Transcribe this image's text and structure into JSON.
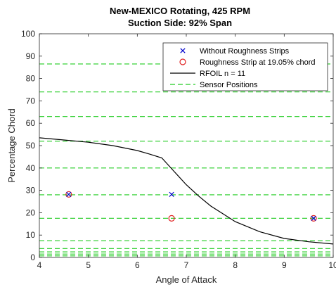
{
  "chart_data": {
    "type": "scatter",
    "title": "New-MEXICO Rotating, 425 RPM",
    "subtitle": "Suction Side: 92% Span",
    "xlabel": "Angle of Attack",
    "ylabel": "Percentage Chord",
    "xlim": [
      4,
      10
    ],
    "ylim": [
      0,
      100
    ],
    "xticks": [
      "4",
      "5",
      "6",
      "7",
      "8",
      "9",
      "10"
    ],
    "yticks": [
      "0",
      "10",
      "20",
      "30",
      "40",
      "50",
      "60",
      "70",
      "80",
      "90",
      "100"
    ],
    "grid": false,
    "legend_position": "top-right",
    "series": [
      {
        "name": "Without Roughness Strips",
        "marker": "x",
        "color": "#0000cc",
        "x": [
          4.6,
          6.7,
          9.6
        ],
        "y": [
          28.2,
          28.2,
          17.5
        ]
      },
      {
        "name": "Roughness Strip at 19.05% chord",
        "marker": "circle",
        "color": "#e02020",
        "x": [
          4.6,
          6.7,
          9.6
        ],
        "y": [
          28.2,
          17.5,
          17.5
        ]
      },
      {
        "name": "RFOIL n = 11",
        "style": "line",
        "color": "#000000",
        "x": [
          4.0,
          4.5,
          5.0,
          5.5,
          6.0,
          6.25,
          6.5,
          6.75,
          7.0,
          7.25,
          7.5,
          7.75,
          8.0,
          8.5,
          9.0,
          9.5,
          10.0
        ],
        "y": [
          53.5,
          52.5,
          51.5,
          50.0,
          47.8,
          46.2,
          44.5,
          38.5,
          32.5,
          27.5,
          23.0,
          19.5,
          16.0,
          11.5,
          8.5,
          7.0,
          6.0
        ]
      },
      {
        "name": "Sensor Positions",
        "style": "dashed-hlines",
        "color": "#22cc22",
        "y": [
          0.7,
          1.5,
          2.5,
          4,
          7.5,
          17.5,
          28,
          40,
          52,
          63,
          74,
          86.5
        ]
      }
    ]
  }
}
